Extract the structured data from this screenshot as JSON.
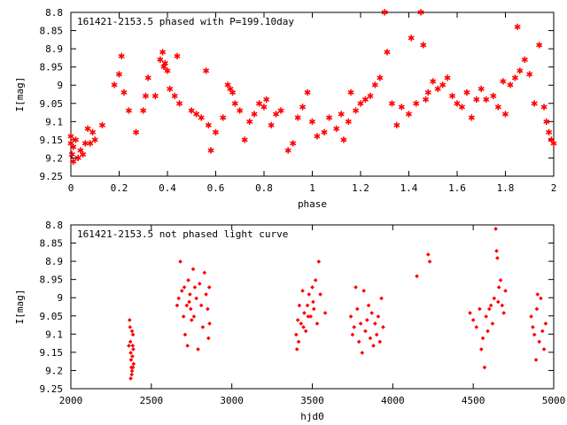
{
  "chart_data": [
    {
      "type": "scatter",
      "title": "161421-2153.5 phased with P=199.10day",
      "xlabel": "phase",
      "ylabel": "I[mag]",
      "xlim": [
        0,
        2
      ],
      "ylim": [
        9.25,
        8.8
      ],
      "y_inverted": true,
      "grid": false,
      "marker": "star",
      "color": "#ff0000",
      "xticks": [
        0,
        0.2,
        0.4,
        0.6,
        0.8,
        1,
        1.2,
        1.4,
        1.6,
        1.8,
        2
      ],
      "xtick_labels": [
        "0",
        "0.2",
        "0.4",
        "0.6",
        "0.8",
        "1",
        "1.2",
        "1.4",
        "1.6",
        "1.8",
        "2"
      ],
      "yticks": [
        8.8,
        8.85,
        8.9,
        8.95,
        9.0,
        9.05,
        9.1,
        9.15,
        9.2,
        9.25
      ],
      "ytick_labels": [
        "8.8",
        "8.85",
        "8.9",
        "8.95",
        "9",
        "9.05",
        "9.1",
        "9.15",
        "9.2",
        "9.25"
      ],
      "points": [
        [
          0.0,
          9.14
        ],
        [
          0.0,
          9.16
        ],
        [
          0.005,
          9.19
        ],
        [
          0.01,
          9.21
        ],
        [
          0.01,
          9.17
        ],
        [
          0.02,
          9.15
        ],
        [
          0.03,
          9.2
        ],
        [
          0.04,
          9.18
        ],
        [
          0.05,
          9.19
        ],
        [
          0.06,
          9.16
        ],
        [
          0.07,
          9.12
        ],
        [
          0.08,
          9.16
        ],
        [
          0.09,
          9.13
        ],
        [
          0.1,
          9.15
        ],
        [
          0.13,
          9.11
        ],
        [
          0.18,
          9.0
        ],
        [
          0.2,
          8.97
        ],
        [
          0.21,
          8.92
        ],
        [
          0.22,
          9.02
        ],
        [
          0.24,
          9.07
        ],
        [
          0.27,
          9.13
        ],
        [
          0.3,
          9.07
        ],
        [
          0.31,
          9.03
        ],
        [
          0.32,
          8.98
        ],
        [
          0.35,
          9.03
        ],
        [
          0.37,
          8.93
        ],
        [
          0.38,
          8.91
        ],
        [
          0.385,
          8.95
        ],
        [
          0.39,
          8.94
        ],
        [
          0.4,
          8.96
        ],
        [
          0.41,
          9.01
        ],
        [
          0.43,
          9.03
        ],
        [
          0.44,
          8.92
        ],
        [
          0.45,
          9.05
        ],
        [
          0.5,
          9.07
        ],
        [
          0.52,
          9.08
        ],
        [
          0.54,
          9.09
        ],
        [
          0.56,
          8.96
        ],
        [
          0.57,
          9.11
        ],
        [
          0.58,
          9.18
        ],
        [
          0.6,
          9.13
        ],
        [
          0.63,
          9.09
        ],
        [
          0.65,
          9.0
        ],
        [
          0.66,
          9.01
        ],
        [
          0.67,
          9.02
        ],
        [
          0.68,
          9.05
        ],
        [
          0.7,
          9.07
        ],
        [
          0.72,
          9.15
        ],
        [
          0.74,
          9.1
        ],
        [
          0.76,
          9.08
        ],
        [
          0.78,
          9.05
        ],
        [
          0.8,
          9.06
        ],
        [
          0.81,
          9.04
        ],
        [
          0.83,
          9.11
        ],
        [
          0.85,
          9.08
        ],
        [
          0.87,
          9.07
        ],
        [
          0.9,
          9.18
        ],
        [
          0.92,
          9.16
        ],
        [
          0.94,
          9.09
        ],
        [
          0.96,
          9.06
        ],
        [
          0.98,
          9.02
        ],
        [
          1.0,
          9.1
        ],
        [
          1.02,
          9.14
        ],
        [
          1.05,
          9.13
        ],
        [
          1.07,
          9.09
        ],
        [
          1.1,
          9.12
        ],
        [
          1.12,
          9.08
        ],
        [
          1.13,
          9.15
        ],
        [
          1.15,
          9.1
        ],
        [
          1.16,
          9.02
        ],
        [
          1.18,
          9.07
        ],
        [
          1.2,
          9.05
        ],
        [
          1.22,
          9.04
        ],
        [
          1.24,
          9.03
        ],
        [
          1.26,
          9.0
        ],
        [
          1.28,
          8.98
        ],
        [
          1.3,
          8.8
        ],
        [
          1.31,
          8.91
        ],
        [
          1.33,
          9.05
        ],
        [
          1.35,
          9.11
        ],
        [
          1.37,
          9.06
        ],
        [
          1.4,
          9.08
        ],
        [
          1.41,
          8.87
        ],
        [
          1.43,
          9.05
        ],
        [
          1.45,
          8.8
        ],
        [
          1.46,
          8.89
        ],
        [
          1.47,
          9.04
        ],
        [
          1.48,
          9.02
        ],
        [
          1.5,
          8.99
        ],
        [
          1.52,
          9.01
        ],
        [
          1.54,
          9.0
        ],
        [
          1.56,
          8.98
        ],
        [
          1.58,
          9.03
        ],
        [
          1.6,
          9.05
        ],
        [
          1.62,
          9.06
        ],
        [
          1.64,
          9.02
        ],
        [
          1.66,
          9.09
        ],
        [
          1.68,
          9.04
        ],
        [
          1.7,
          9.01
        ],
        [
          1.72,
          9.04
        ],
        [
          1.75,
          9.03
        ],
        [
          1.77,
          9.06
        ],
        [
          1.79,
          8.99
        ],
        [
          1.8,
          9.08
        ],
        [
          1.82,
          9.0
        ],
        [
          1.84,
          8.98
        ],
        [
          1.85,
          8.84
        ],
        [
          1.86,
          8.96
        ],
        [
          1.88,
          8.93
        ],
        [
          1.9,
          8.97
        ],
        [
          1.92,
          9.05
        ],
        [
          1.94,
          8.89
        ],
        [
          1.96,
          9.06
        ],
        [
          1.97,
          9.1
        ],
        [
          1.98,
          9.13
        ],
        [
          1.99,
          9.15
        ],
        [
          2.0,
          9.16
        ]
      ]
    },
    {
      "type": "scatter",
      "title": "161421-2153.5 not phased light curve",
      "xlabel": "hjd0",
      "ylabel": "I[mag]",
      "xlim": [
        2000,
        5000
      ],
      "ylim": [
        9.25,
        8.8
      ],
      "y_inverted": true,
      "grid": false,
      "marker": "diamond",
      "color": "#ff0000",
      "xticks": [
        2000,
        2500,
        3000,
        3500,
        4000,
        4500,
        5000
      ],
      "xtick_labels": [
        "2000",
        "2500",
        "3000",
        "3500",
        "4000",
        "4500",
        "5000"
      ],
      "yticks": [
        8.8,
        8.85,
        8.9,
        8.95,
        9.0,
        9.05,
        9.1,
        9.15,
        9.2,
        9.25
      ],
      "ytick_labels": [
        "8.8",
        "8.85",
        "8.9",
        "8.95",
        "9",
        "9.05",
        "9.1",
        "9.15",
        "9.2",
        "9.25"
      ],
      "points": [
        [
          2360,
          9.13
        ],
        [
          2365,
          9.06
        ],
        [
          2368,
          9.08
        ],
        [
          2370,
          9.12
        ],
        [
          2372,
          9.15
        ],
        [
          2374,
          9.17
        ],
        [
          2376,
          9.19
        ],
        [
          2378,
          9.21
        ],
        [
          2380,
          9.2
        ],
        [
          2382,
          9.16
        ],
        [
          2384,
          9.13
        ],
        [
          2386,
          9.1
        ],
        [
          2388,
          9.14
        ],
        [
          2390,
          9.18
        ],
        [
          2372,
          9.22
        ],
        [
          2380,
          9.09
        ],
        [
          2386,
          9.19
        ],
        [
          2660,
          9.02
        ],
        [
          2670,
          9.0
        ],
        [
          2680,
          8.9
        ],
        [
          2690,
          8.98
        ],
        [
          2700,
          9.05
        ],
        [
          2710,
          9.1
        ],
        [
          2720,
          9.02
        ],
        [
          2725,
          9.13
        ],
        [
          2730,
          8.95
        ],
        [
          2740,
          8.99
        ],
        [
          2745,
          9.03
        ],
        [
          2750,
          9.06
        ],
        [
          2760,
          8.92
        ],
        [
          2770,
          8.97
        ],
        [
          2780,
          9.0
        ],
        [
          2790,
          9.14
        ],
        [
          2800,
          8.96
        ],
        [
          2810,
          9.02
        ],
        [
          2820,
          9.08
        ],
        [
          2830,
          8.93
        ],
        [
          2840,
          8.99
        ],
        [
          2850,
          9.03
        ],
        [
          2855,
          9.11
        ],
        [
          2860,
          8.97
        ],
        [
          2862,
          9.07
        ],
        [
          2705,
          8.97
        ],
        [
          2735,
          9.01
        ],
        [
          2765,
          9.05
        ],
        [
          3400,
          9.1
        ],
        [
          3405,
          9.14
        ],
        [
          3410,
          9.06
        ],
        [
          3420,
          9.02
        ],
        [
          3430,
          9.07
        ],
        [
          3440,
          8.98
        ],
        [
          3450,
          9.04
        ],
        [
          3460,
          9.09
        ],
        [
          3470,
          9.02
        ],
        [
          3480,
          8.99
        ],
        [
          3490,
          9.05
        ],
        [
          3500,
          8.97
        ],
        [
          3510,
          9.03
        ],
        [
          3520,
          8.95
        ],
        [
          3530,
          9.07
        ],
        [
          3540,
          8.9
        ],
        [
          3550,
          8.99
        ],
        [
          3580,
          9.04
        ],
        [
          3415,
          9.12
        ],
        [
          3445,
          9.08
        ],
        [
          3475,
          9.05
        ],
        [
          3505,
          9.01
        ],
        [
          3740,
          9.05
        ],
        [
          3750,
          9.1
        ],
        [
          3760,
          9.08
        ],
        [
          3770,
          8.97
        ],
        [
          3780,
          9.03
        ],
        [
          3790,
          9.12
        ],
        [
          3800,
          9.07
        ],
        [
          3810,
          9.15
        ],
        [
          3820,
          8.98
        ],
        [
          3830,
          9.09
        ],
        [
          3840,
          9.06
        ],
        [
          3850,
          9.02
        ],
        [
          3860,
          9.11
        ],
        [
          3870,
          9.04
        ],
        [
          3880,
          9.13
        ],
        [
          3890,
          9.07
        ],
        [
          3900,
          9.1
        ],
        [
          3910,
          9.05
        ],
        [
          3920,
          9.12
        ],
        [
          3930,
          9.0
        ],
        [
          3940,
          9.08
        ],
        [
          4150,
          8.94
        ],
        [
          4220,
          8.88
        ],
        [
          4230,
          8.9
        ],
        [
          4480,
          9.04
        ],
        [
          4500,
          9.06
        ],
        [
          4520,
          9.08
        ],
        [
          4540,
          9.03
        ],
        [
          4550,
          9.14
        ],
        [
          4560,
          9.11
        ],
        [
          4570,
          9.19
        ],
        [
          4580,
          9.05
        ],
        [
          4590,
          9.09
        ],
        [
          4600,
          9.03
        ],
        [
          4610,
          9.02
        ],
        [
          4620,
          9.07
        ],
        [
          4630,
          9.0
        ],
        [
          4640,
          8.81
        ],
        [
          4645,
          8.87
        ],
        [
          4650,
          8.89
        ],
        [
          4655,
          9.01
        ],
        [
          4660,
          8.97
        ],
        [
          4670,
          8.95
        ],
        [
          4680,
          9.02
        ],
        [
          4690,
          9.04
        ],
        [
          4700,
          8.98
        ],
        [
          4860,
          9.05
        ],
        [
          4870,
          9.08
        ],
        [
          4880,
          9.1
        ],
        [
          4890,
          9.17
        ],
        [
          4895,
          9.03
        ],
        [
          4900,
          8.99
        ],
        [
          4910,
          9.12
        ],
        [
          4920,
          9.0
        ],
        [
          4930,
          9.09
        ],
        [
          4940,
          9.14
        ],
        [
          4950,
          9.07
        ]
      ]
    }
  ]
}
